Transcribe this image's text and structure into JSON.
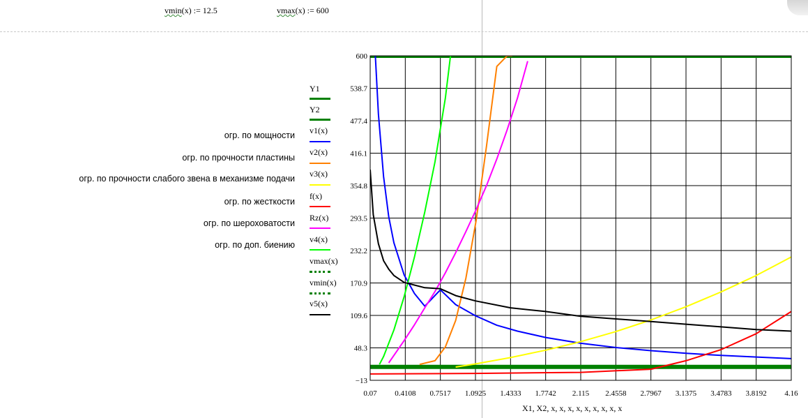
{
  "definitions": {
    "vmin_name": "vmin",
    "vmin_rest": "(x) := 12.5",
    "vmax_name": "vmax",
    "vmax_rest": "(x) := 600"
  },
  "constraint_labels": [
    "огр. по мощности",
    "огр. по прочности пластины",
    "огр. по прочности слабого звена в механизме подачи",
    "огр. по жесткости",
    "огр. по шероховатости",
    "огр. по доп. биению"
  ],
  "chart_data": {
    "type": "line",
    "xlabel": "X1, X2, x, x, x, x, x, x, x, x, x",
    "ylabel": "",
    "xlim": [
      0.07,
      4.16
    ],
    "ylim": [
      -13,
      600
    ],
    "x_ticks": [
      "0.07",
      "0.4108",
      "0.7517",
      "1.0925",
      "1.4333",
      "1.7742",
      "2.115",
      "2.4558",
      "2.7967",
      "3.1375",
      "3.4783",
      "3.8192",
      "4.16"
    ],
    "y_ticks": [
      "600",
      "538.7",
      "477.4",
      "416.1",
      "354.8",
      "293.5",
      "232.2",
      "170.9",
      "109.6",
      "48.3",
      "−13"
    ],
    "grid": true,
    "series": [
      {
        "name": "Y1",
        "color": "#008000",
        "style": "thick",
        "x": [
          0.07,
          4.16
        ],
        "y": [
          600,
          600
        ]
      },
      {
        "name": "Y2",
        "color": "#008000",
        "style": "thick",
        "x": [
          0.07,
          4.16
        ],
        "y": [
          12.5,
          12.5
        ]
      },
      {
        "name": "v1(x)",
        "color": "#0000ff",
        "style": "solid",
        "x": [
          0.12,
          0.15,
          0.2,
          0.25,
          0.3,
          0.4,
          0.5,
          0.6,
          0.7517,
          0.9,
          1.0925,
          1.3,
          1.5,
          1.7742,
          2.115,
          2.4558,
          2.7967,
          3.1375,
          3.4783,
          3.8192,
          4.16
        ],
        "y": [
          600,
          490,
          372,
          296,
          247,
          186,
          151,
          127,
          158,
          130,
          109,
          91,
          80,
          68,
          57,
          49,
          43,
          38,
          34,
          31,
          28
        ]
      },
      {
        "name": "v2(x)",
        "color": "#ff8000",
        "style": "solid",
        "x": [
          0.55,
          0.7,
          0.8,
          0.9,
          1.0,
          1.1,
          1.2,
          1.3,
          1.4,
          1.45
        ],
        "y": [
          17,
          24,
          50,
          100,
          180,
          290,
          430,
          580,
          600,
          600
        ]
      },
      {
        "name": "v3(x)",
        "color": "#ffff00",
        "style": "solid",
        "x": [
          0.9,
          1.0925,
          1.4333,
          1.7742,
          2.115,
          2.4558,
          2.7967,
          3.1375,
          3.4783,
          3.8192,
          4.16
        ],
        "y": [
          12,
          18,
          30,
          44,
          60,
          79,
          101,
          126,
          154,
          185,
          220
        ]
      },
      {
        "name": "f(x)",
        "color": "#ff0000",
        "style": "solid",
        "x": [
          0.07,
          1.0925,
          2.115,
          2.7967,
          3.1375,
          3.4783,
          3.8192,
          4.16
        ],
        "y": [
          -1,
          0,
          2,
          8,
          24,
          45,
          75,
          117
        ]
      },
      {
        "name": "Rz(x)",
        "color": "#ff00ff",
        "style": "solid",
        "x": [
          0.25,
          0.4,
          0.5,
          0.6,
          0.7,
          0.8,
          0.9,
          1.0,
          1.1,
          1.2,
          1.3,
          1.4,
          1.5,
          1.6
        ],
        "y": [
          20,
          62,
          92,
          124,
          155,
          190,
          228,
          268,
          310,
          355,
          405,
          460,
          520,
          590
        ]
      },
      {
        "name": "v4(x)",
        "color": "#00ff00",
        "style": "solid",
        "x": [
          0.16,
          0.2,
          0.3,
          0.4,
          0.5,
          0.6,
          0.7,
          0.8,
          0.85
        ],
        "y": [
          17,
          32,
          82,
          145,
          220,
          305,
          400,
          520,
          600
        ]
      },
      {
        "name": "vmax(x)",
        "color": "#008000",
        "style": "dotted",
        "x": [
          0.07,
          4.16
        ],
        "y": [
          600,
          600
        ]
      },
      {
        "name": "vmin(x)",
        "color": "#008000",
        "style": "dotted",
        "x": [
          0.07,
          4.16
        ],
        "y": [
          12.5,
          12.5
        ]
      },
      {
        "name": "v5(x)",
        "color": "#000000",
        "style": "solid",
        "x": [
          0.07,
          0.1,
          0.15,
          0.2,
          0.25,
          0.3,
          0.4,
          0.5,
          0.6,
          0.7517,
          0.9,
          1.0925,
          1.4333,
          1.7742,
          2.115,
          2.4558,
          2.7967,
          3.1375,
          3.4783,
          3.8192,
          4.16
        ],
        "y": [
          385,
          300,
          245,
          213,
          197,
          185,
          172,
          167,
          162,
          160,
          147,
          137,
          124,
          117,
          108,
          103,
          98,
          93,
          88,
          83,
          80
        ]
      }
    ]
  }
}
